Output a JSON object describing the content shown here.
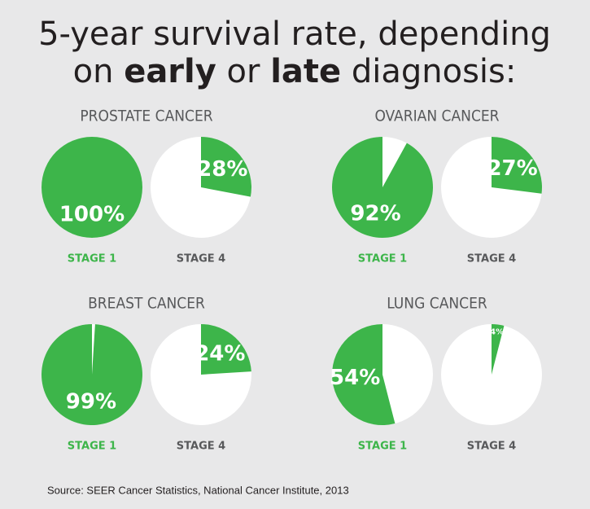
{
  "title": [
    "5-year survival rate, depending",
    "on",
    "early",
    "or",
    "late",
    "diagnosis:"
  ],
  "source": "Source: SEER Cancer Statistics, National Cancer Institute, 2013",
  "chart_data": [
    {
      "type": "pie",
      "title": "PROSTATE CANCER",
      "categories": [
        "STAGE 1",
        "STAGE 4"
      ],
      "values": [
        100,
        28
      ],
      "value_labels": [
        "100%",
        "28%"
      ],
      "color": "#3db54a"
    },
    {
      "type": "pie",
      "title": "OVARIAN CANCER",
      "categories": [
        "STAGE 1",
        "STAGE 4"
      ],
      "values": [
        92,
        27
      ],
      "value_labels": [
        "92%",
        "27%"
      ],
      "color": "#3db54a"
    },
    {
      "type": "pie",
      "title": "BREAST CANCER",
      "categories": [
        "STAGE 1",
        "STAGE 4"
      ],
      "values": [
        99,
        24
      ],
      "value_labels": [
        "99%",
        "24%"
      ],
      "color": "#3db54a"
    },
    {
      "type": "pie",
      "title": "LUNG CANCER",
      "categories": [
        "STAGE 1",
        "STAGE 4"
      ],
      "values": [
        54,
        4
      ],
      "value_labels": [
        "54%",
        "4%"
      ],
      "color": "#3db54a"
    }
  ]
}
